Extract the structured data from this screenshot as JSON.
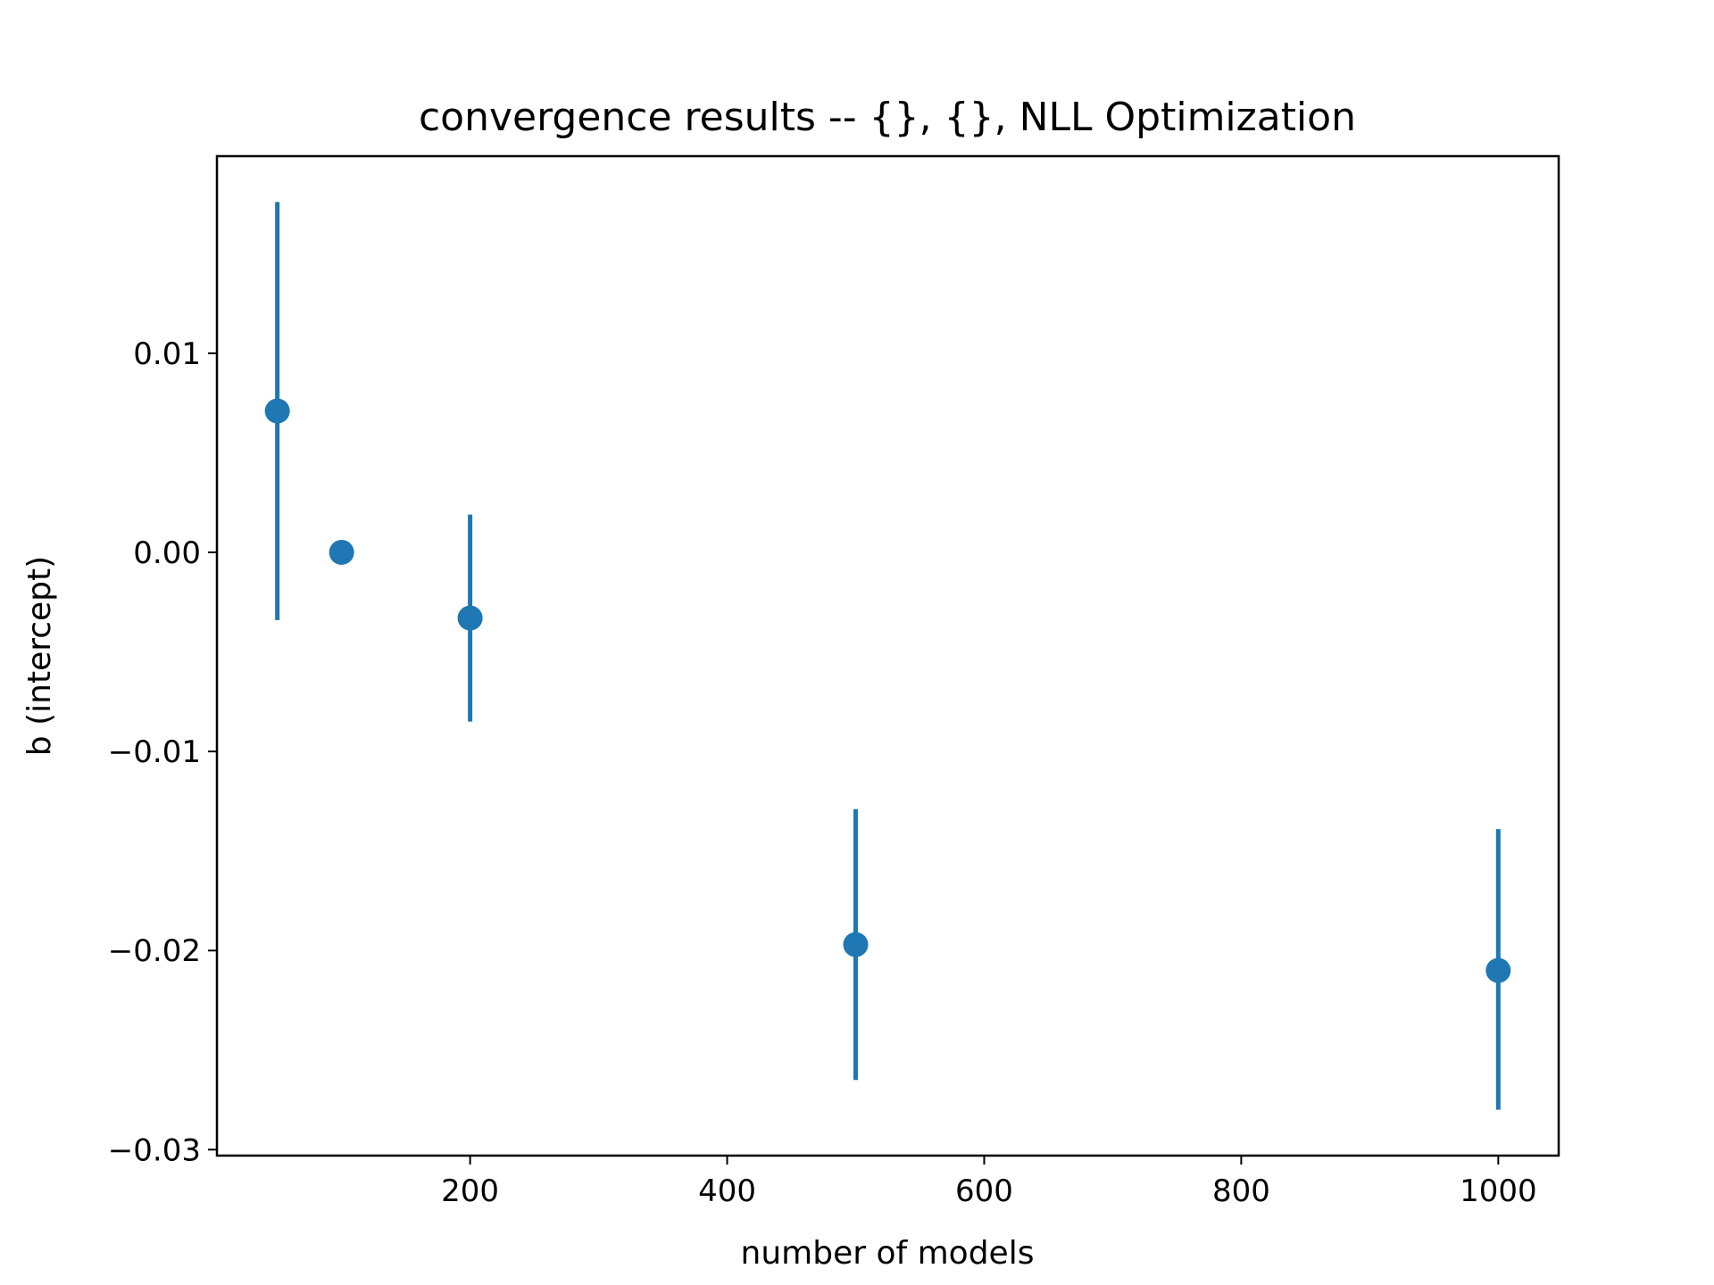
{
  "chart_data": {
    "type": "scatter",
    "title": "convergence results -- {}, {}, NLL Optimization",
    "xlabel": "number of models",
    "ylabel": "b (intercept)",
    "xlim": [
      3,
      1047
    ],
    "ylim": [
      -0.0303,
      0.0199
    ],
    "grid": false,
    "xticks": [
      200,
      400,
      600,
      800,
      1000
    ],
    "xtick_labels": [
      "200",
      "400",
      "600",
      "800",
      "1000"
    ],
    "yticks": [
      0.01,
      0.0,
      -0.01,
      -0.02,
      -0.03
    ],
    "ytick_labels": [
      "0.01",
      "0.00",
      "−0.01",
      "−0.02",
      "−0.03"
    ],
    "series": [
      {
        "color": "#1f77b4",
        "points": [
          {
            "x": 50,
            "y": 0.0071,
            "ylow": -0.0034,
            "yhigh": 0.0176
          },
          {
            "x": 100,
            "y": 0.0,
            "ylow": 0.0,
            "yhigh": 0.0
          },
          {
            "x": 200,
            "y": -0.0033,
            "ylow": -0.0085,
            "yhigh": 0.0019
          },
          {
            "x": 500,
            "y": -0.0197,
            "ylow": -0.0265,
            "yhigh": -0.0129
          },
          {
            "x": 1000,
            "y": -0.021,
            "ylow": -0.028,
            "yhigh": -0.0139
          }
        ]
      }
    ]
  }
}
